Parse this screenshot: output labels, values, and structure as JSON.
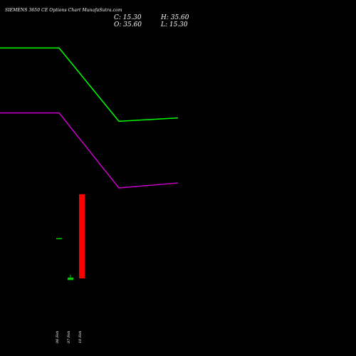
{
  "header": {
    "title": "SIEMENS 3650  CE Options  Chart MunafaSutra.com",
    "close_label": "C: 15.30",
    "high_label": "H: 35.60",
    "open_label": "O: 35.60",
    "low_label": "L: 15.30"
  },
  "chart_data": {
    "type": "candlestick",
    "x": [
      "06 Feb",
      "07 Feb",
      "10 Feb"
    ],
    "candles": [
      {
        "date": "06 Feb",
        "open": 25.0,
        "high": 25.0,
        "low": 25.0,
        "close": 25.0
      },
      {
        "date": "07 Feb",
        "open": 14.9,
        "high": 16.2,
        "low": 14.9,
        "close": 15.5
      },
      {
        "date": "10 Feb",
        "open": 35.6,
        "high": 35.6,
        "low": 15.3,
        "close": 15.3
      }
    ],
    "overlays": [
      {
        "color": "#00ff00",
        "points": [
          {
            "x": "05 Feb",
            "y": 70.0
          },
          {
            "x": "06 Feb",
            "y": 70.0
          },
          {
            "x": "07 Feb",
            "y": 48.0
          },
          {
            "x": "10 Feb",
            "y": 49.0
          }
        ]
      },
      {
        "color": "#cc00cc",
        "points": [
          {
            "x": "05 Feb",
            "y": 50.5
          },
          {
            "x": "06 Feb",
            "y": 50.5
          },
          {
            "x": "07 Feb",
            "y": 28.0
          },
          {
            "x": "10 Feb",
            "y": 29.5
          }
        ]
      }
    ],
    "colors": {
      "up": "#00cc00",
      "down": "#ff0000",
      "background": "#000000",
      "text": "#ffffff"
    },
    "grid": false
  }
}
